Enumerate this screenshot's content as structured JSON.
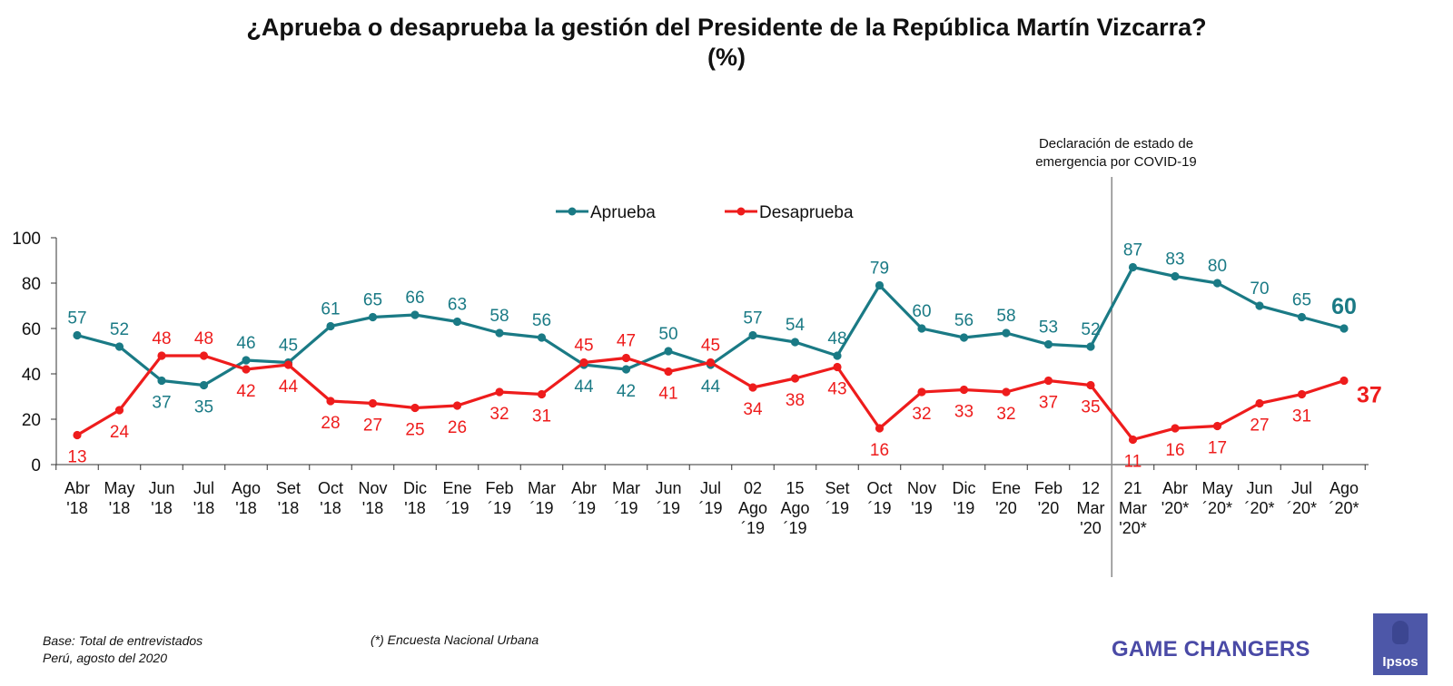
{
  "title": "¿Aprueba o desaprueba la gestión del Presidente de la República Martín Vizcarra?",
  "subtitle": "(%)",
  "footer": {
    "base": "Base: Total de entrevistados",
    "place_date": "Perú, agosto del 2020",
    "note": "(*) Encuesta Nacional Urbana",
    "brand": "GAME CHANGERS",
    "logo_text": "Ipsos"
  },
  "chart_data": {
    "type": "line",
    "ylim": [
      0,
      100
    ],
    "yticks": [
      0,
      20,
      40,
      60,
      80,
      100
    ],
    "legend_position": "top-center",
    "grid": false,
    "categories": [
      [
        "Abr",
        "'18"
      ],
      [
        "May",
        "'18"
      ],
      [
        "Jun",
        "'18"
      ],
      [
        "Jul",
        "'18"
      ],
      [
        "Ago",
        "'18"
      ],
      [
        "Set",
        "'18"
      ],
      [
        "Oct",
        "'18"
      ],
      [
        "Nov",
        "'18"
      ],
      [
        "Dic",
        "'18"
      ],
      [
        "Ene",
        "´19"
      ],
      [
        "Feb",
        "´19"
      ],
      [
        "Mar",
        "´19"
      ],
      [
        "Abr",
        "´19"
      ],
      [
        "Mar",
        "´19"
      ],
      [
        "Jun",
        "´19"
      ],
      [
        "Jul",
        "´19"
      ],
      [
        "02",
        "Ago",
        "´19"
      ],
      [
        "15",
        "Ago",
        "´19"
      ],
      [
        "Set",
        "´19"
      ],
      [
        "Oct",
        "´19"
      ],
      [
        "Nov",
        "'19"
      ],
      [
        "Dic",
        "'19"
      ],
      [
        "Ene",
        "'20"
      ],
      [
        "Feb",
        "'20"
      ],
      [
        "12",
        "Mar",
        "'20"
      ],
      [
        "21",
        "Mar",
        "'20*"
      ],
      [
        "Abr",
        "'20*"
      ],
      [
        "May",
        "´20*"
      ],
      [
        "Jun",
        "´20*"
      ],
      [
        "Jul",
        "´20*"
      ],
      [
        "Ago",
        "´20*"
      ]
    ],
    "series": [
      {
        "name": "Aprueba",
        "color": "#1a7a85",
        "values": [
          57,
          52,
          37,
          35,
          46,
          45,
          61,
          65,
          66,
          63,
          58,
          56,
          44,
          42,
          50,
          44,
          57,
          54,
          48,
          79,
          60,
          56,
          58,
          53,
          52,
          87,
          83,
          80,
          70,
          65,
          60
        ]
      },
      {
        "name": "Desaprueba",
        "color": "#ee1c1c",
        "values": [
          13,
          24,
          48,
          48,
          42,
          44,
          28,
          27,
          25,
          26,
          32,
          31,
          45,
          47,
          41,
          45,
          34,
          38,
          43,
          16,
          32,
          33,
          32,
          37,
          35,
          11,
          16,
          17,
          27,
          31,
          37
        ]
      }
    ],
    "annotation": {
      "lines": [
        "Declaración de estado de",
        "emergencia por COVID-19"
      ],
      "between_categories": [
        24,
        25
      ]
    }
  }
}
